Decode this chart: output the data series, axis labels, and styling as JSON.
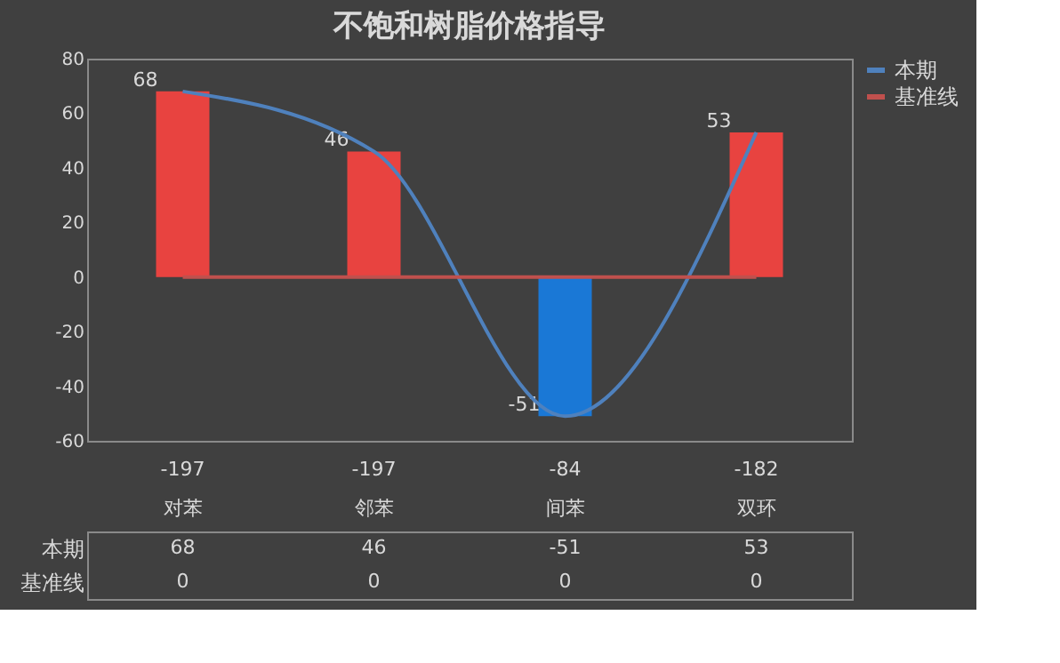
{
  "chart_data": {
    "type": "bar",
    "title": "不饱和树脂价格指导",
    "categories": [
      "-197\n对苯",
      "-197\n邻苯",
      "-84\n间苯",
      "-182\n双环"
    ],
    "series": [
      {
        "colors": [
          "#e84340",
          "#e84340",
          "#1a78d6",
          "#e84340"
        ],
        "values": [
          68,
          46,
          -51,
          53
        ]
      },
      {
        "type": "line",
        "name": "本期",
        "color": "#4f81bd",
        "values": [
          68,
          46,
          -51,
          53
        ]
      },
      {
        "type": "line",
        "name": "基准线",
        "color": "#c0504d",
        "values": [
          0,
          0,
          0,
          0
        ]
      }
    ],
    "ylim": [
      -60,
      80
    ],
    "yticks": [
      -60,
      -40,
      -20,
      0,
      20,
      40,
      60,
      80
    ],
    "grid": false,
    "legend": "top right",
    "data_labels": true,
    "marker": "none",
    "line_style": "solid"
  }
}
